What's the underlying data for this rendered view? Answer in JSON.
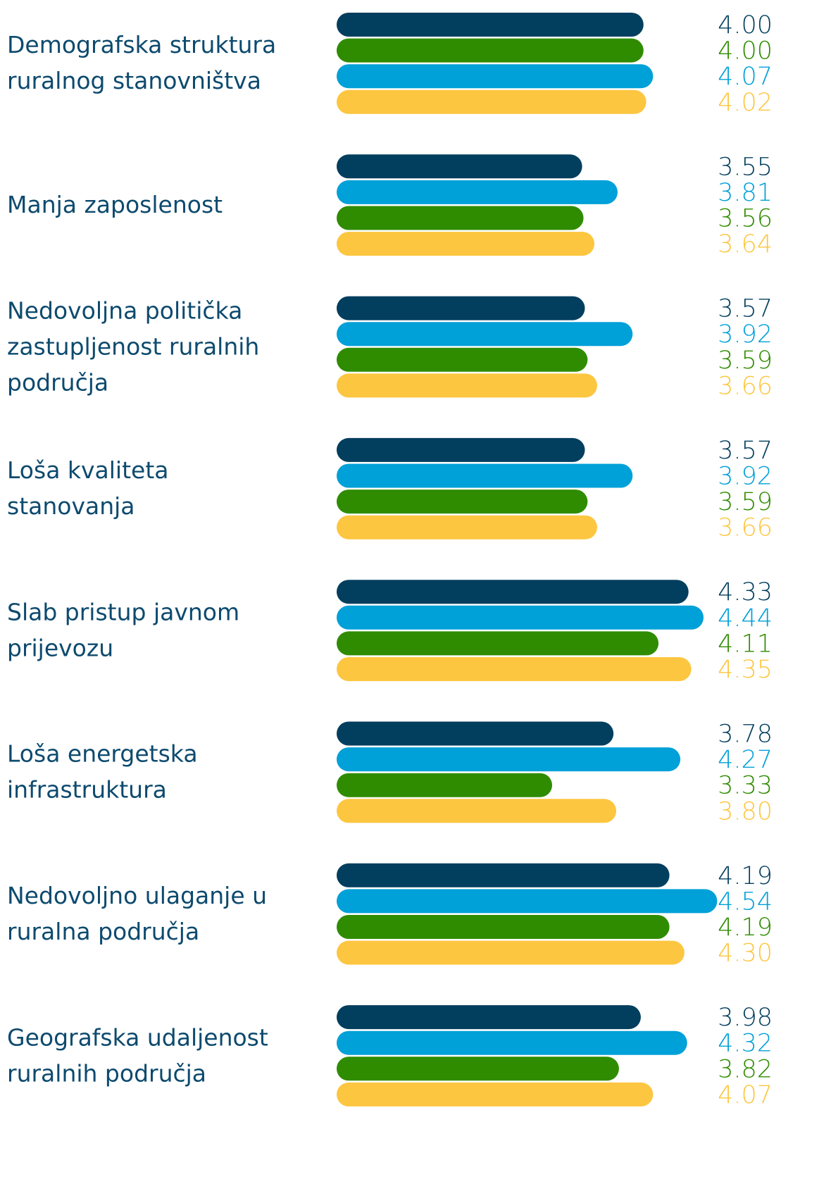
{
  "chart_data": {
    "type": "bar",
    "orientation": "horizontal",
    "xlim": [
      1.75,
      4.6
    ],
    "groups": [
      {
        "label": [
          "Demografska struktura",
          "ruralnog stanovništva"
        ],
        "bars": [
          {
            "color": "#023e5e",
            "value": 4.0,
            "value_label": "4.00"
          },
          {
            "color": "#2f8c00",
            "value": 4.0,
            "value_label": "4.00"
          },
          {
            "color": "#00a0d8",
            "value": 4.07,
            "value_label": "4.07"
          },
          {
            "color": "#fdc640",
            "value": 4.02,
            "value_label": "4.02"
          }
        ]
      },
      {
        "label": [
          "Manja zaposlenost"
        ],
        "bars": [
          {
            "color": "#023e5e",
            "value": 3.55,
            "value_label": "3.55"
          },
          {
            "color": "#00a0d8",
            "value": 3.81,
            "value_label": "3.81"
          },
          {
            "color": "#2f8c00",
            "value": 3.56,
            "value_label": "3.56"
          },
          {
            "color": "#fdc640",
            "value": 3.64,
            "value_label": "3.64"
          }
        ]
      },
      {
        "label": [
          "Nedovoljna politička",
          "zastupljenost ruralnih",
          "područja"
        ],
        "bars": [
          {
            "color": "#023e5e",
            "value": 3.57,
            "value_label": "3.57"
          },
          {
            "color": "#00a0d8",
            "value": 3.92,
            "value_label": "3.92"
          },
          {
            "color": "#2f8c00",
            "value": 3.59,
            "value_label": "3.59"
          },
          {
            "color": "#fdc640",
            "value": 3.66,
            "value_label": "3.66"
          }
        ]
      },
      {
        "label": [
          "Loša kvaliteta",
          "stanovanja"
        ],
        "bars": [
          {
            "color": "#023e5e",
            "value": 3.57,
            "value_label": "3.57"
          },
          {
            "color": "#00a0d8",
            "value": 3.92,
            "value_label": "3.92"
          },
          {
            "color": "#2f8c00",
            "value": 3.59,
            "value_label": "3.59"
          },
          {
            "color": "#fdc640",
            "value": 3.66,
            "value_label": "3.66"
          }
        ]
      },
      {
        "label": [
          "Slab pristup javnom",
          "prijevozu"
        ],
        "bars": [
          {
            "color": "#023e5e",
            "value": 4.33,
            "value_label": "4.33"
          },
          {
            "color": "#00a0d8",
            "value": 4.44,
            "value_label": "4.44"
          },
          {
            "color": "#2f8c00",
            "value": 4.11,
            "value_label": "4.11"
          },
          {
            "color": "#fdc640",
            "value": 4.35,
            "value_label": "4.35"
          }
        ]
      },
      {
        "label": [
          "Loša energetska",
          "infrastruktura"
        ],
        "bars": [
          {
            "color": "#023e5e",
            "value": 3.78,
            "value_label": "3.78"
          },
          {
            "color": "#00a0d8",
            "value": 4.27,
            "value_label": "4.27"
          },
          {
            "color": "#2f8c00",
            "value": 3.33,
            "value_label": "3.33"
          },
          {
            "color": "#fdc640",
            "value": 3.8,
            "value_label": "3.80"
          }
        ]
      },
      {
        "label": [
          "Nedovoljno ulaganje u",
          "ruralna područja"
        ],
        "bars": [
          {
            "color": "#023e5e",
            "value": 4.19,
            "value_label": "4.19"
          },
          {
            "color": "#00a0d8",
            "value": 4.54,
            "value_label": "4.54"
          },
          {
            "color": "#2f8c00",
            "value": 4.19,
            "value_label": "4.19"
          },
          {
            "color": "#fdc640",
            "value": 4.3,
            "value_label": "4.30"
          }
        ]
      },
      {
        "label": [
          "Geografska udaljenost",
          "ruralnih područja"
        ],
        "bars": [
          {
            "color": "#023e5e",
            "value": 3.98,
            "value_label": "3.98"
          },
          {
            "color": "#00a0d8",
            "value": 4.32,
            "value_label": "4.32"
          },
          {
            "color": "#2f8c00",
            "value": 3.82,
            "value_label": "3.82"
          },
          {
            "color": "#fdc640",
            "value": 4.07,
            "value_label": "4.07"
          }
        ]
      }
    ]
  }
}
